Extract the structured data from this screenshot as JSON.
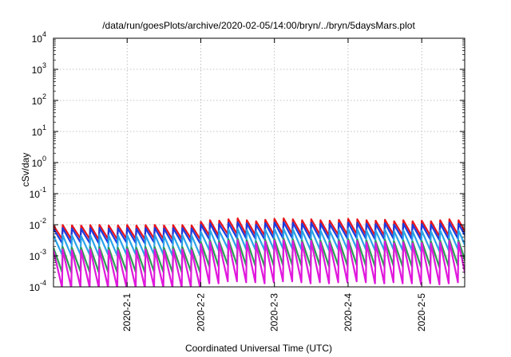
{
  "chart_data": {
    "type": "line",
    "title": "/data/run/goesPlots/archive/2020-02-05/14:00/bryn/../bryn/5daysMars.plot",
    "xlabel": "Coordinated Universal Time (UTC)",
    "ylabel": "cSv/day",
    "yscale": "log",
    "ylim": [
      0.0001,
      10000
    ],
    "yticks": [
      {
        "base": "10",
        "exp": "-4",
        "value": 0.0001
      },
      {
        "base": "10",
        "exp": "-3",
        "value": 0.001
      },
      {
        "base": "10",
        "exp": "-2",
        "value": 0.01
      },
      {
        "base": "10",
        "exp": "-1",
        "value": 0.1
      },
      {
        "base": "10",
        "exp": "0",
        "value": 1
      },
      {
        "base": "10",
        "exp": "1",
        "value": 10
      },
      {
        "base": "10",
        "exp": "2",
        "value": 100
      },
      {
        "base": "10",
        "exp": "3",
        "value": 1000
      },
      {
        "base": "10",
        "exp": "4",
        "value": 10000
      }
    ],
    "xlim": [
      "2020-01-31T00:00",
      "2020-02-05T14:00"
    ],
    "xticks": [
      {
        "label": "2020-2-1",
        "time": "2020-02-01T00:00"
      },
      {
        "label": "2020-2-2",
        "time": "2020-02-02T00:00"
      },
      {
        "label": "2020-2-3",
        "time": "2020-02-03T00:00"
      },
      {
        "label": "2020-2-4",
        "time": "2020-02-04T00:00"
      },
      {
        "label": "2020-2-5",
        "time": "2020-02-05T00:00"
      }
    ],
    "grid": true,
    "legend": "none",
    "sawtooth_period_hours": 3,
    "series": [
      {
        "color": "#e8141c",
        "peaks": [
          0.0095,
          0.0098,
          0.0096,
          0.0094,
          0.0097,
          0.0099,
          0.0095,
          0.0096,
          0.0098,
          0.0094,
          0.0097,
          0.0099,
          0.0095,
          0.0097,
          0.0098,
          0.0096,
          0.0125,
          0.014,
          0.0135,
          0.015,
          0.016,
          0.014,
          0.013,
          0.0145,
          0.0155,
          0.016,
          0.015,
          0.014,
          0.015,
          0.014,
          0.0135,
          0.0145,
          0.0155,
          0.015,
          0.014,
          0.0135,
          0.0145,
          0.013,
          0.014,
          0.013,
          0.0135,
          0.013,
          0.014,
          0.015,
          0.014,
          0.018
        ],
        "troughs": [
          0.0035,
          0.0034,
          0.0036,
          0.0035,
          0.0033,
          0.0035,
          0.0034,
          0.0036,
          0.0035,
          0.0034,
          0.0036,
          0.0035,
          0.0034,
          0.0035,
          0.0036,
          0.0034,
          0.0045,
          0.0045,
          0.005,
          0.005,
          0.0048,
          0.0048,
          0.0045,
          0.0048,
          0.005,
          0.005,
          0.0048,
          0.0045,
          0.0048,
          0.0045,
          0.0048,
          0.0048,
          0.005,
          0.0048,
          0.0045,
          0.0045,
          0.0048,
          0.0045,
          0.0045,
          0.0042,
          0.0045,
          0.0042,
          0.0045,
          0.0048,
          0.0045,
          0.0055
        ]
      },
      {
        "color": "#1a3ce0",
        "peaks": [
          0.0075,
          0.0078,
          0.0076,
          0.0074,
          0.0077,
          0.0079,
          0.0075,
          0.0076,
          0.0078,
          0.0074,
          0.0077,
          0.0079,
          0.0075,
          0.0077,
          0.0078,
          0.0076,
          0.01,
          0.011,
          0.0105,
          0.0115,
          0.012,
          0.011,
          0.01,
          0.0112,
          0.0118,
          0.012,
          0.0115,
          0.0108,
          0.0115,
          0.0108,
          0.0105,
          0.0112,
          0.0118,
          0.0115,
          0.0108,
          0.0105,
          0.0112,
          0.01,
          0.0108,
          0.01,
          0.0105,
          0.01,
          0.0108,
          0.0115,
          0.0108,
          0.014
        ],
        "troughs": [
          0.0026,
          0.0025,
          0.0027,
          0.0026,
          0.0025,
          0.0026,
          0.0025,
          0.0027,
          0.0026,
          0.0025,
          0.0027,
          0.0026,
          0.0025,
          0.0026,
          0.0027,
          0.0025,
          0.0034,
          0.0034,
          0.0037,
          0.0037,
          0.0036,
          0.0036,
          0.0034,
          0.0036,
          0.0037,
          0.0037,
          0.0036,
          0.0034,
          0.0036,
          0.0034,
          0.0036,
          0.0036,
          0.0037,
          0.0036,
          0.0034,
          0.0034,
          0.0036,
          0.0034,
          0.0034,
          0.0032,
          0.0034,
          0.0032,
          0.0034,
          0.0036,
          0.0034,
          0.0042
        ]
      },
      {
        "color": "#2aa3e8",
        "peaks": [
          0.0045,
          0.0047,
          0.0046,
          0.0044,
          0.0046,
          0.0048,
          0.0045,
          0.0046,
          0.0047,
          0.0044,
          0.0046,
          0.0048,
          0.0045,
          0.0046,
          0.0047,
          0.0046,
          0.006,
          0.0068,
          0.0065,
          0.0072,
          0.0075,
          0.0068,
          0.0062,
          0.007,
          0.0074,
          0.0075,
          0.0072,
          0.0066,
          0.0072,
          0.0066,
          0.0065,
          0.007,
          0.0074,
          0.0072,
          0.0066,
          0.0065,
          0.007,
          0.0062,
          0.0066,
          0.0062,
          0.0065,
          0.0062,
          0.0066,
          0.0072,
          0.0066,
          0.009
        ],
        "troughs": [
          0.0011,
          0.001,
          0.0011,
          0.0011,
          0.001,
          0.0011,
          0.001,
          0.0011,
          0.0011,
          0.001,
          0.0011,
          0.0011,
          0.001,
          0.0011,
          0.0011,
          0.001,
          0.0015,
          0.0015,
          0.0017,
          0.0017,
          0.0016,
          0.0016,
          0.0015,
          0.0016,
          0.0017,
          0.0017,
          0.0016,
          0.0015,
          0.0016,
          0.0015,
          0.0016,
          0.0016,
          0.0017,
          0.0016,
          0.0015,
          0.0015,
          0.0016,
          0.0015,
          0.0015,
          0.0014,
          0.0015,
          0.0014,
          0.0015,
          0.0016,
          0.0015,
          0.0019
        ]
      },
      {
        "color": "#2c9e52",
        "peaks": [
          0.0018,
          0.0019,
          0.0018,
          0.0018,
          0.0019,
          0.0019,
          0.0018,
          0.0018,
          0.0019,
          0.0018,
          0.0019,
          0.0019,
          0.0018,
          0.0019,
          0.0019,
          0.0018,
          0.0028,
          0.0032,
          0.003,
          0.0034,
          0.0036,
          0.0032,
          0.0029,
          0.0033,
          0.0035,
          0.0036,
          0.0034,
          0.0031,
          0.0034,
          0.0031,
          0.003,
          0.0033,
          0.0035,
          0.0034,
          0.0031,
          0.003,
          0.0033,
          0.0029,
          0.0031,
          0.0029,
          0.003,
          0.0029,
          0.0031,
          0.0034,
          0.0031,
          0.0042
        ],
        "troughs": [
          0.0003,
          0.00029,
          0.00031,
          0.0003,
          0.00029,
          0.0003,
          0.00029,
          0.00031,
          0.0003,
          0.00029,
          0.00031,
          0.0003,
          0.00029,
          0.0003,
          0.00031,
          0.00029,
          0.00045,
          0.00045,
          0.0005,
          0.0005,
          0.00048,
          0.00048,
          0.00045,
          0.00048,
          0.0005,
          0.0005,
          0.00048,
          0.00045,
          0.00048,
          0.00045,
          0.00048,
          0.00048,
          0.0005,
          0.00048,
          0.00045,
          0.00045,
          0.00048,
          0.00045,
          0.00045,
          0.00042,
          0.00045,
          0.00042,
          0.00045,
          0.00048,
          0.00045,
          0.00055
        ]
      },
      {
        "color": "#e018dc",
        "peaks": [
          0.0015,
          0.0016,
          0.0015,
          0.0015,
          0.0016,
          0.0016,
          0.0015,
          0.0015,
          0.0016,
          0.0015,
          0.0016,
          0.0016,
          0.0015,
          0.0016,
          0.0016,
          0.0015,
          0.0024,
          0.0028,
          0.0026,
          0.003,
          0.0032,
          0.0028,
          0.0025,
          0.0029,
          0.0031,
          0.0032,
          0.003,
          0.0027,
          0.003,
          0.0027,
          0.0026,
          0.0029,
          0.0031,
          0.003,
          0.0027,
          0.0026,
          0.0029,
          0.0025,
          0.0027,
          0.0025,
          0.0026,
          0.0025,
          0.0027,
          0.003,
          0.0027,
          0.0036
        ],
        "troughs": [
          9.5e-05,
          9.2e-05,
          9.8e-05,
          9.5e-05,
          9.2e-05,
          9.5e-05,
          9.2e-05,
          9.8e-05,
          9.5e-05,
          9.2e-05,
          9.8e-05,
          9.5e-05,
          9.2e-05,
          9.5e-05,
          9.8e-05,
          9.2e-05,
          0.00013,
          0.00013,
          0.00015,
          0.00015,
          0.00014,
          0.00014,
          0.00013,
          0.00014,
          0.00015,
          0.00015,
          0.00014,
          0.00013,
          0.00014,
          0.00013,
          0.00014,
          0.00014,
          0.00015,
          0.00014,
          0.00013,
          0.00013,
          0.00014,
          0.00013,
          0.00013,
          0.00012,
          0.00013,
          0.00012,
          0.00013,
          0.00014,
          0.00013,
          0.00016
        ]
      }
    ]
  }
}
